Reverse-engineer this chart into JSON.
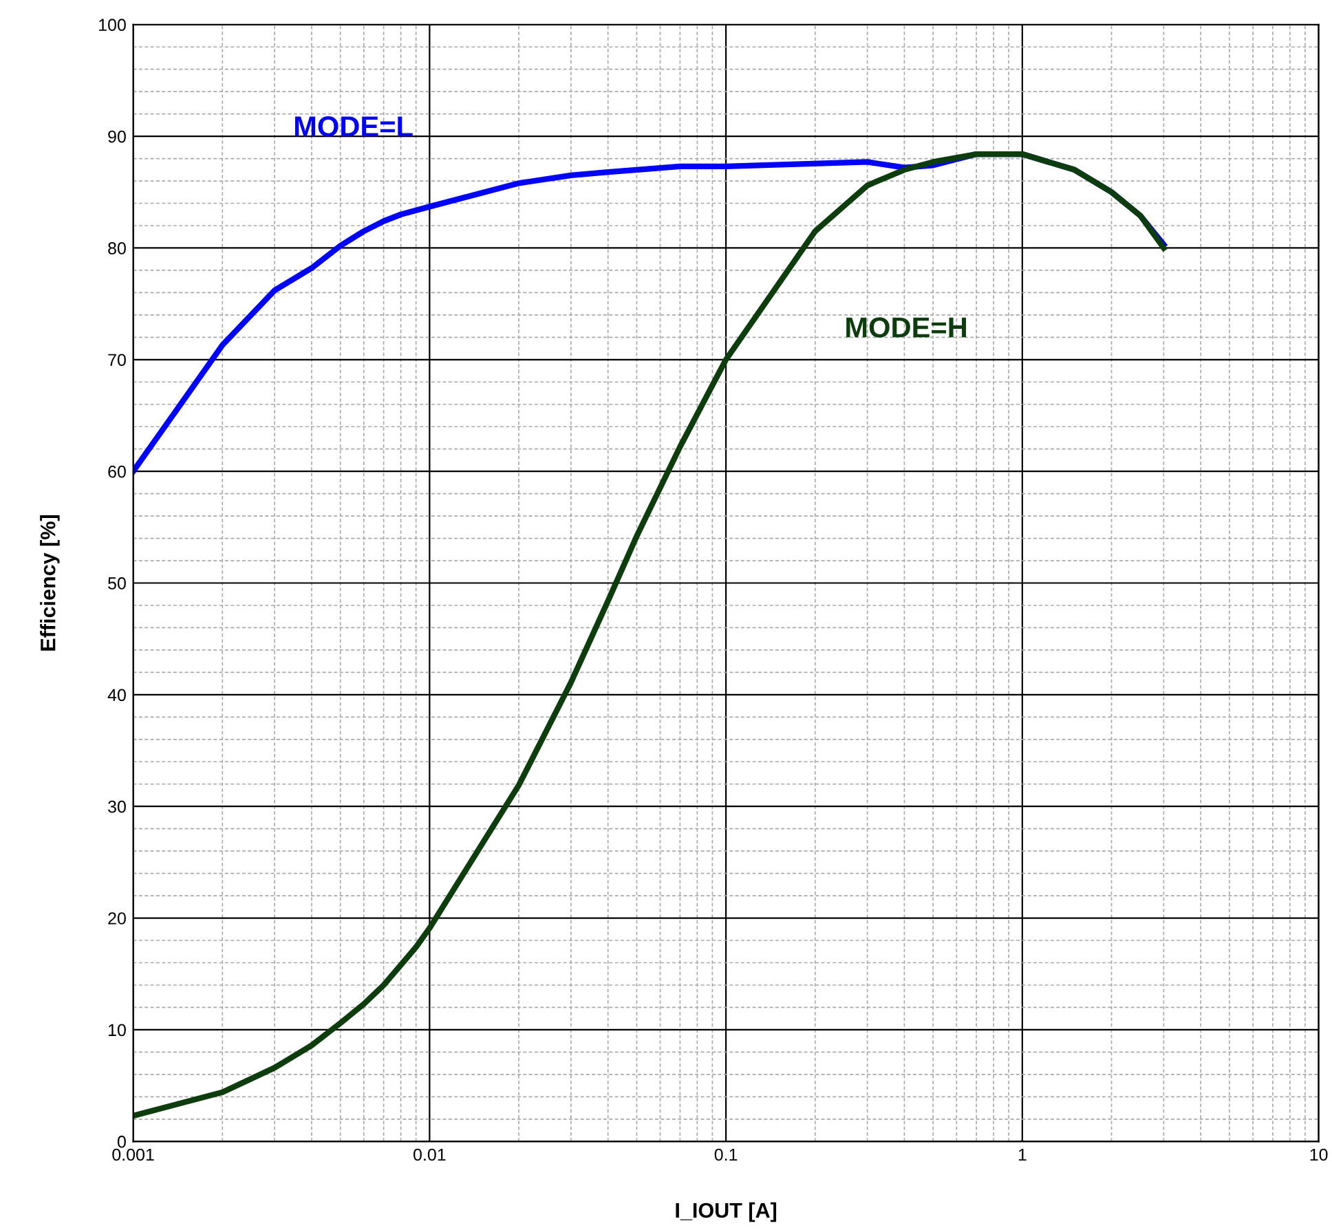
{
  "chart_data": {
    "type": "line",
    "xlabel": "I_IOUT [A]",
    "ylabel": "Efficiency [%]",
    "log": "x",
    "grid": true,
    "legend": false,
    "marker": "none",
    "line_style": "solid",
    "xlim": [
      0.001,
      10
    ],
    "xticks": [
      0.001,
      0.01,
      0.1,
      1,
      10
    ],
    "ylim": [
      0,
      100
    ],
    "yticks": [
      0,
      10,
      20,
      30,
      40,
      50,
      60,
      70,
      80,
      90,
      100
    ],
    "series": [
      {
        "name": "MODE=L",
        "color": "#0000ff",
        "x": [
          0.001,
          0.002,
          0.003,
          0.004,
          0.005,
          0.006,
          0.007,
          0.008,
          0.01,
          0.02,
          0.03,
          0.04,
          0.05,
          0.07,
          0.1,
          0.3,
          0.4,
          0.5,
          0.7,
          1,
          1.5,
          2,
          2.5,
          3
        ],
        "values": [
          60,
          71.3,
          76.2,
          78.2,
          80.2,
          81.5,
          82.4,
          83.0,
          83.7,
          85.8,
          86.5,
          86.8,
          87.0,
          87.3,
          87.3,
          87.7,
          87.2,
          87.4,
          88.4,
          88.4,
          87.0,
          85.0,
          82.9,
          80.3
        ]
      },
      {
        "name": "MODE=H",
        "color": "#0d3d0d",
        "x": [
          0.001,
          0.002,
          0.003,
          0.004,
          0.005,
          0.006,
          0.007,
          0.008,
          0.009,
          0.01,
          0.02,
          0.03,
          0.04,
          0.05,
          0.07,
          0.1,
          0.2,
          0.3,
          0.4,
          0.5,
          0.7,
          1,
          1.5,
          2,
          2.5,
          3
        ],
        "values": [
          2.3,
          4.4,
          6.6,
          8.6,
          10.6,
          12.3,
          14.0,
          15.8,
          17.4,
          19.1,
          31.9,
          41.1,
          48.4,
          54.2,
          62.2,
          70.0,
          81.5,
          85.6,
          87.0,
          87.7,
          88.4,
          88.4,
          87.0,
          85.0,
          82.9,
          80.0
        ]
      }
    ]
  }
}
